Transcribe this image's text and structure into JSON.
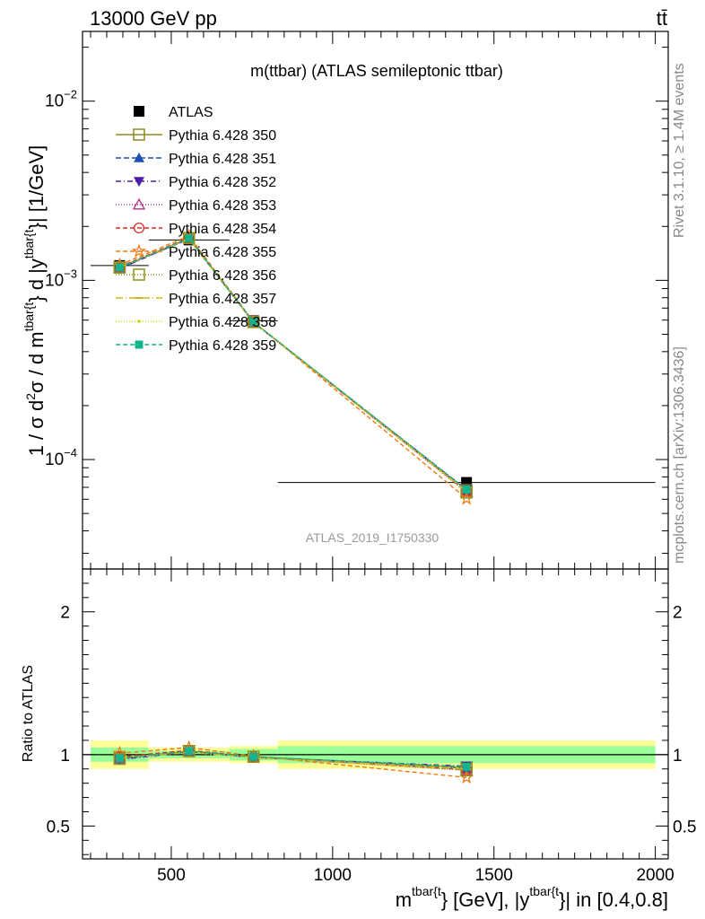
{
  "header": {
    "left": "13000 GeV pp",
    "right": "tt̄"
  },
  "side_labels": {
    "rivet": "Rivet 3.1.10, ≥ 1.4M events",
    "mcplots": "mcplots.cern.ch [arXiv:1306.3436]"
  },
  "chart_data": {
    "type": "line",
    "title": "m(ttbar) (ATLAS semileptonic ttbar)",
    "watermark": "ATLAS_2019_I1750330",
    "xlabel": "m^{tbar{t}} [GeV], |y^{tbar{t}}| in [0.4,0.8]",
    "ylabel": "1 / σ d²σ / d m^{tbar{t}} d |y^{tbar{t}}| [1/GeV]",
    "ratio_ylabel": "Ratio to ATLAS",
    "xlim": [
      225,
      2040
    ],
    "ylim": [
      2.45e-05,
      0.0245
    ],
    "yscale": "log",
    "ratio_ylim": [
      0.27,
      2.3
    ],
    "xticks": [
      500,
      1000,
      1500,
      2000
    ],
    "yticks_major": [
      {
        "value": 0.0001,
        "base": "10",
        "exp": "−4"
      },
      {
        "value": 0.001,
        "base": "10",
        "exp": "−3"
      },
      {
        "value": 0.01,
        "base": "10",
        "exp": "−2"
      }
    ],
    "ratio_yticks": [
      0.5,
      1,
      2
    ],
    "legend_position": "top-left",
    "x": [
      340,
      555,
      755,
      1415
    ],
    "bin_edges": [
      250,
      430,
      680,
      830,
      2000
    ],
    "reference": {
      "name": "ATLAS",
      "values": [
        0.00121,
        0.00168,
        0.000595,
        7.45e-05
      ],
      "ratio_band_inner": [
        [
          0.95,
          1.05
        ],
        [
          0.975,
          1.025
        ],
        [
          0.96,
          1.04
        ],
        [
          0.94,
          1.06
        ]
      ],
      "ratio_band_outer": [
        [
          0.9,
          1.1
        ],
        [
          0.95,
          1.05
        ],
        [
          0.94,
          1.06
        ],
        [
          0.9,
          1.1
        ]
      ]
    },
    "series": [
      {
        "name": "Pythia 6.428 350",
        "color": "#8b8b1e",
        "dash": "",
        "marker": "square-open",
        "values": [
          0.00118,
          0.00172,
          0.000585,
          6.75e-05
        ],
        "ratio": [
          0.975,
          1.025,
          0.985,
          0.91
        ]
      },
      {
        "name": "Pythia 6.428 351",
        "color": "#1f4fb4",
        "dash": "6,3",
        "marker": "triangle-up",
        "values": [
          0.00117,
          0.0017,
          0.000582,
          6.7e-05
        ],
        "ratio": [
          0.97,
          1.02,
          0.98,
          0.905
        ]
      },
      {
        "name": "Pythia 6.428 352",
        "color": "#4b1fa8",
        "dash": "6,3,1,3",
        "marker": "triangle-down",
        "values": [
          0.00116,
          0.00171,
          0.00058,
          6.8e-05
        ],
        "ratio": [
          0.965,
          1.02,
          0.98,
          0.92
        ]
      },
      {
        "name": "Pythia 6.428 353",
        "color": "#b4328c",
        "dash": "1,2",
        "marker": "triangle-open",
        "values": [
          0.00118,
          0.00171,
          0.000582,
          6.6e-05
        ],
        "ratio": [
          0.975,
          1.02,
          0.98,
          0.89
        ]
      },
      {
        "name": "Pythia 6.428 354",
        "color": "#dc2828",
        "dash": "5,3",
        "marker": "circle-open",
        "values": [
          0.00119,
          0.00173,
          0.000585,
          6.65e-05
        ],
        "ratio": [
          0.985,
          1.03,
          0.985,
          0.895
        ]
      },
      {
        "name": "Pythia 6.428 355",
        "color": "#f07814",
        "dash": "5,3",
        "marker": "star-open",
        "values": [
          0.00122,
          0.00177,
          0.000588,
          6.05e-05
        ],
        "ratio": [
          1.01,
          1.05,
          0.99,
          0.84
        ]
      },
      {
        "name": "Pythia 6.428 356",
        "color": "#8c961e",
        "dash": "1,2",
        "marker": "square-open",
        "values": [
          0.00118,
          0.00172,
          0.000585,
          6.55e-05
        ],
        "ratio": [
          0.97,
          1.025,
          0.985,
          0.89
        ]
      },
      {
        "name": "Pythia 6.428 357",
        "color": "#d2b414",
        "dash": "8,3,1,3",
        "marker": "dash",
        "values": [
          0.00118,
          0.0017,
          0.000583,
          6.65e-05
        ],
        "ratio": [
          0.975,
          1.015,
          0.98,
          0.9
        ]
      },
      {
        "name": "Pythia 6.428 358",
        "color": "#c8dc1e",
        "dash": "1,2",
        "marker": "dot",
        "values": [
          0.00118,
          0.00171,
          0.000583,
          6.7e-05
        ],
        "ratio": [
          0.975,
          1.02,
          0.98,
          0.905
        ]
      },
      {
        "name": "Pythia 6.428 359",
        "color": "#14b48c",
        "dash": "5,3",
        "marker": "square-filled",
        "values": [
          0.00118,
          0.00172,
          0.000585,
          6.8e-05
        ],
        "ratio": [
          0.975,
          1.025,
          0.985,
          0.915
        ]
      }
    ]
  }
}
